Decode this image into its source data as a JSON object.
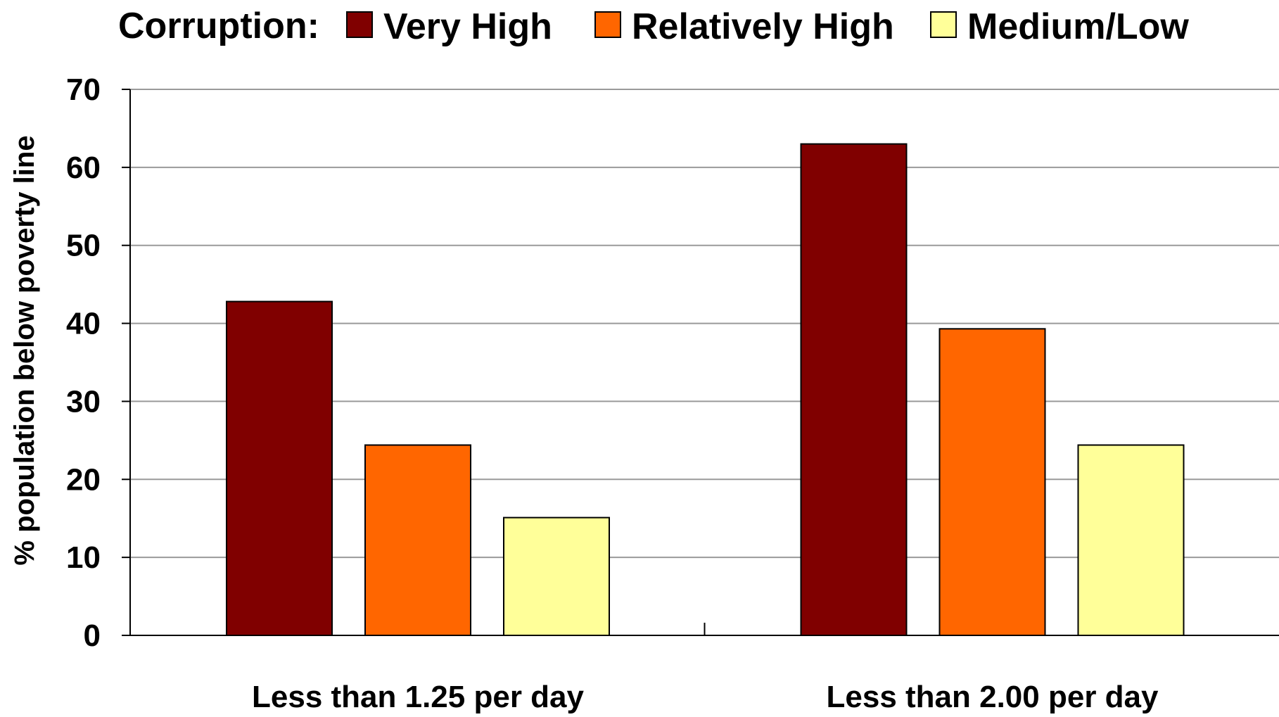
{
  "chart_data": {
    "type": "bar",
    "title": "",
    "legend": {
      "title": "Corruption:",
      "placement": "top"
    },
    "categories": [
      "Less than 1.25 per day",
      "Less than 2.00 per day"
    ],
    "series": [
      {
        "name": "Very High",
        "color": "#800000",
        "values": [
          42.8,
          63.0
        ]
      },
      {
        "name": "Relatively High",
        "color": "#ff6600",
        "values": [
          24.4,
          39.3
        ]
      },
      {
        "name": "Medium/Low",
        "color": "#ffff99",
        "values": [
          15.1,
          24.4
        ]
      }
    ],
    "xlabel": "",
    "ylabel": "% population below poverty line",
    "ylim": [
      0,
      70
    ],
    "yticks": [
      0,
      10,
      20,
      30,
      40,
      50,
      60,
      70
    ],
    "grid": true
  }
}
